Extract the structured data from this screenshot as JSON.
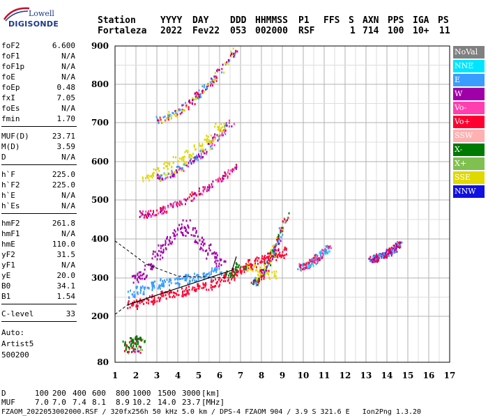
{
  "logo": {
    "line1": "Lowell",
    "line2": "DIGISONDE"
  },
  "header": {
    "labels": [
      "Station",
      "YYYY",
      "DAY",
      "DDD",
      "HHMMSS",
      "P1",
      "FFS",
      "S",
      "AXN",
      "PPS",
      "IGA",
      "PS"
    ],
    "values": [
      "Fortaleza",
      "2022",
      "Fev22",
      "053",
      "002000",
      "RSF",
      "",
      "1",
      "714",
      "100",
      "10+",
      "11"
    ]
  },
  "params_group1": [
    {
      "k": "foF2",
      "v": "6.600"
    },
    {
      "k": "foF1",
      "v": "N/A"
    },
    {
      "k": "foF1p",
      "v": "N/A"
    },
    {
      "k": "foE",
      "v": "N/A"
    },
    {
      "k": "foEp",
      "v": "0.48"
    },
    {
      "k": "fxI",
      "v": "7.05"
    },
    {
      "k": "foEs",
      "v": "N/A"
    },
    {
      "k": "fmin",
      "v": "1.70"
    }
  ],
  "params_group2": [
    {
      "k": "MUF(D)",
      "v": "23.71"
    },
    {
      "k": "M(D)",
      "v": "3.59"
    },
    {
      "k": "D",
      "v": "N/A"
    }
  ],
  "params_group3": [
    {
      "k": "h`F",
      "v": "225.0"
    },
    {
      "k": "h`F2",
      "v": "225.0"
    },
    {
      "k": "h`E",
      "v": "N/A"
    },
    {
      "k": "h`Es",
      "v": "N/A"
    }
  ],
  "params_group4": [
    {
      "k": "hmF2",
      "v": "261.8"
    },
    {
      "k": "hmF1",
      "v": "N/A"
    },
    {
      "k": "hmE",
      "v": "110.0"
    },
    {
      "k": "yF2",
      "v": "31.5"
    },
    {
      "k": "yF1",
      "v": "N/A"
    },
    {
      "k": "yE",
      "v": "20.0"
    },
    {
      "k": "B0",
      "v": "34.1"
    },
    {
      "k": "B1",
      "v": "1.54"
    }
  ],
  "params_group5": [
    {
      "k": "C-level",
      "v": "33"
    }
  ],
  "auto": {
    "line1": "Auto:",
    "line2": "Artist5",
    "line3": "500200"
  },
  "legend": [
    {
      "label": "NoVal",
      "color": "#808080"
    },
    {
      "label": "NNE",
      "color": "#00e5ff"
    },
    {
      "label": "E",
      "color": "#3b9cff"
    },
    {
      "label": "W",
      "color": "#a000a8"
    },
    {
      "label": "Vo-",
      "color": "#ff3fb0"
    },
    {
      "label": "Vo+",
      "color": "#ff0030"
    },
    {
      "label": "SSW",
      "color": "#ffb0b0"
    },
    {
      "label": "X-",
      "color": "#007a00"
    },
    {
      "label": "X+",
      "color": "#80c050"
    },
    {
      "label": "SSE",
      "color": "#e0d800"
    },
    {
      "label": "NNW",
      "color": "#1010e0"
    }
  ],
  "chart_data": {
    "type": "scatter",
    "title": "",
    "xlabel": "",
    "ylabel": "",
    "xlim": [
      1,
      17
    ],
    "ylim": [
      80,
      900
    ],
    "x_ticks": [
      1,
      2,
      3,
      4,
      5,
      6,
      7,
      8,
      9,
      10,
      11,
      12,
      13,
      14,
      15,
      16,
      17
    ],
    "y_ticks": [
      80,
      200,
      300,
      400,
      500,
      600,
      700,
      800,
      900
    ],
    "grid": true,
    "series": [
      {
        "name": "Vo+",
        "color": "#ff0030",
        "x": [
          1.8,
          2.2,
          2.6,
          3.0,
          3.4,
          3.8,
          4.2,
          4.6,
          5.0,
          5.4,
          5.8,
          6.2,
          6.5,
          6.8,
          7.0,
          7.3,
          7.6,
          7.9,
          8.2,
          8.5,
          8.8,
          9.0
        ],
        "y": [
          232,
          238,
          244,
          250,
          256,
          262,
          266,
          270,
          276,
          282,
          290,
          298,
          308,
          318,
          322,
          330,
          338,
          348,
          352,
          358,
          364,
          370
        ]
      },
      {
        "name": "W",
        "color": "#a000a8",
        "x": [
          2.0,
          2.3,
          2.6,
          3.0,
          3.3,
          3.6,
          4.0,
          4.3,
          4.6,
          5.0,
          5.3,
          5.6,
          6.0
        ],
        "y": [
          300,
          310,
          330,
          360,
          380,
          400,
          420,
          440,
          420,
          400,
          380,
          360,
          340
        ]
      },
      {
        "name": "E",
        "color": "#3b9cff",
        "x": [
          1.8,
          2.2,
          2.6,
          3.0,
          3.4,
          3.8,
          4.2,
          4.6,
          5.0,
          5.4,
          5.8
        ],
        "y": [
          260,
          270,
          280,
          285,
          290,
          292,
          296,
          300,
          304,
          310,
          320
        ]
      },
      {
        "name": "SSE",
        "color": "#e0d800",
        "x": [
          2.5,
          3.0,
          3.5,
          4.0,
          4.5,
          5.0,
          5.5,
          6.0,
          7.5,
          8.0,
          8.5
        ],
        "y": [
          560,
          575,
          590,
          605,
          620,
          640,
          660,
          690,
          330,
          320,
          310
        ]
      },
      {
        "name": "X-",
        "color": "#007a00",
        "x": [
          1.6,
          1.9,
          2.2,
          6.5,
          7.0
        ],
        "y": [
          130,
          135,
          140,
          315,
          330
        ]
      }
    ]
  },
  "bottom": {
    "d_label": "D",
    "d_values": [
      "100",
      "200",
      "400",
      "600",
      "800",
      "1000",
      "1500",
      "3000"
    ],
    "d_unit": "[km]",
    "muf_label": "MUF",
    "muf_values": [
      "7.0",
      "7.0",
      "7.4",
      "8.1",
      "8.9",
      "10.2",
      "14.0",
      "23.7"
    ],
    "muf_unit": "[MHz]",
    "footer": "FZAOM_2022053002000.RSF / 320fx256h 50 kHz 5.0 km / DPS-4 FZAOM 904 / 3.9 S 321.6 E   Ion2Png 1.3.20"
  }
}
